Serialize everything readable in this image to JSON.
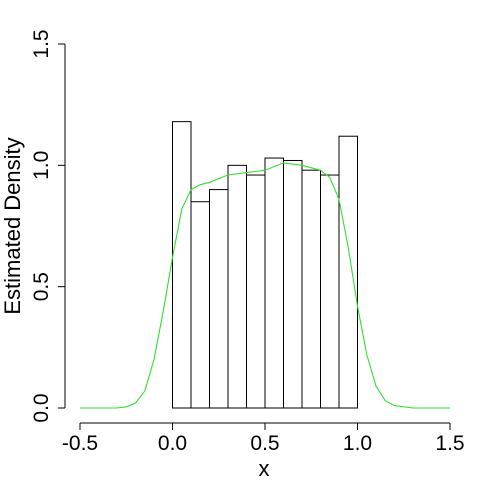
{
  "chart_data": {
    "type": "histogram",
    "xlabel": "x",
    "ylabel": "Estimated Density",
    "xlim": [
      -0.5,
      1.5
    ],
    "ylim": [
      0,
      1.5
    ],
    "x_ticks": [
      -0.5,
      0.0,
      0.5,
      1.0,
      1.5
    ],
    "x_tick_labels": [
      "-0.5",
      "0.0",
      "0.5",
      "1.0",
      "1.5"
    ],
    "y_ticks": [
      0.0,
      0.5,
      1.0,
      1.5
    ],
    "y_tick_labels": [
      "0.0",
      "0.5",
      "1.0",
      "1.5"
    ],
    "grid": false,
    "bins": [
      {
        "x0": 0.0,
        "x1": 0.1,
        "density": 1.18
      },
      {
        "x0": 0.1,
        "x1": 0.2,
        "density": 0.85
      },
      {
        "x0": 0.2,
        "x1": 0.3,
        "density": 0.9
      },
      {
        "x0": 0.3,
        "x1": 0.4,
        "density": 1.0
      },
      {
        "x0": 0.4,
        "x1": 0.5,
        "density": 0.96
      },
      {
        "x0": 0.5,
        "x1": 0.6,
        "density": 1.03
      },
      {
        "x0": 0.6,
        "x1": 0.7,
        "density": 1.02
      },
      {
        "x0": 0.7,
        "x1": 0.8,
        "density": 0.98
      },
      {
        "x0": 0.8,
        "x1": 0.9,
        "density": 0.96
      },
      {
        "x0": 0.9,
        "x1": 1.0,
        "density": 1.12
      }
    ],
    "density_curve": {
      "color": "#33dd33",
      "x": [
        -0.5,
        -0.3,
        -0.25,
        -0.2,
        -0.15,
        -0.1,
        -0.05,
        0.0,
        0.05,
        0.1,
        0.15,
        0.2,
        0.3,
        0.4,
        0.5,
        0.6,
        0.7,
        0.8,
        0.85,
        0.9,
        0.95,
        1.0,
        1.05,
        1.1,
        1.15,
        1.2,
        1.3,
        1.5
      ],
      "y": [
        0.0,
        0.0,
        0.005,
        0.02,
        0.07,
        0.2,
        0.4,
        0.62,
        0.82,
        0.9,
        0.92,
        0.93,
        0.96,
        0.97,
        0.98,
        1.01,
        1.0,
        0.98,
        0.95,
        0.86,
        0.66,
        0.42,
        0.22,
        0.09,
        0.03,
        0.01,
        0.0,
        0.0
      ]
    }
  }
}
